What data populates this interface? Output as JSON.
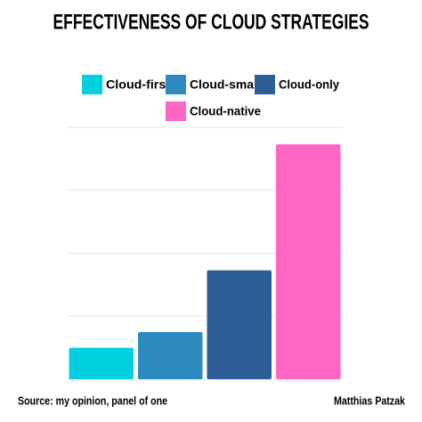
{
  "chart_data": {
    "type": "bar",
    "title": "EFFECTIVENESS OF CLOUD STRATEGIES",
    "series": [
      {
        "name": "Cloud-first",
        "color": "#00d0e0",
        "values": [
          0.5
        ]
      },
      {
        "name": "Cloud-smart",
        "color": "#2e8bc0",
        "values": [
          0.75
        ]
      },
      {
        "name": "Cloud-only",
        "color": "#2d5d96",
        "values": [
          1.73
        ]
      },
      {
        "name": "Cloud-native",
        "color": "#ff66c4",
        "values": [
          3.73
        ]
      }
    ],
    "ylim": [
      0,
      4
    ],
    "yticks": [
      0,
      1,
      2,
      3,
      4
    ],
    "grid": true,
    "source": "Source: my opinion, panel of one",
    "author": "Matthias Patzak"
  }
}
